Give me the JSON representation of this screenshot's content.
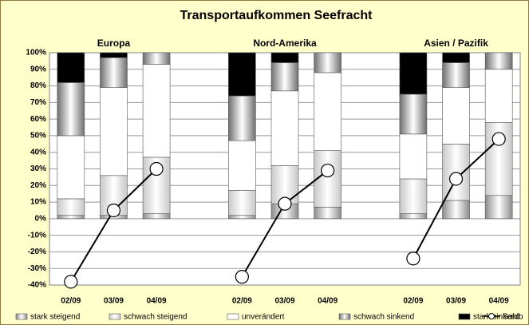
{
  "chart_data": {
    "type": "stacked-bar-line",
    "title": "Transportaufkommen Seefracht",
    "group_labels": [
      "Europa",
      "Nord-Amerika",
      "Asien / Pazifik"
    ],
    "categories": [
      "02/09",
      "03/09",
      "04/09",
      null,
      "02/09",
      "03/09",
      "04/09",
      null,
      "02/09",
      "03/09",
      "04/09"
    ],
    "series": [
      {
        "name": "stark steigend",
        "color": "#8c8c8c",
        "values": [
          2,
          2,
          3,
          null,
          2,
          9,
          7,
          null,
          3,
          11,
          14
        ]
      },
      {
        "name": "schwach steigend",
        "color": "#c8c8c8",
        "values": [
          10,
          24,
          34,
          null,
          15,
          23,
          34,
          null,
          21,
          34,
          44
        ]
      },
      {
        "name": "unverändert",
        "color": "#ffffff",
        "values": [
          38,
          53,
          56,
          null,
          30,
          45,
          47,
          null,
          27,
          34,
          32
        ]
      },
      {
        "name": "schwach sinkend",
        "color": "#6e6e6e",
        "values": [
          32,
          18,
          7,
          null,
          27,
          17,
          12,
          null,
          24,
          15,
          10
        ]
      },
      {
        "name": "stark sinkend",
        "color": "#000000",
        "values": [
          18,
          3,
          0,
          null,
          26,
          6,
          0,
          null,
          25,
          6,
          0
        ]
      }
    ],
    "line_series": {
      "name": "Saldo",
      "color": "#000000",
      "values": [
        -38,
        5,
        30,
        null,
        -35,
        9,
        29,
        null,
        -24,
        24,
        48
      ]
    },
    "ylim": [
      -40,
      100
    ],
    "yticks": [
      {
        "value": -40,
        "label": "-40%"
      },
      {
        "value": -30,
        "label": "-30%"
      },
      {
        "value": -20,
        "label": "-20%"
      },
      {
        "value": -10,
        "label": "-10%"
      },
      {
        "value": 0,
        "label": "0%"
      },
      {
        "value": 10,
        "label": "10%"
      },
      {
        "value": 20,
        "label": "20%"
      },
      {
        "value": 30,
        "label": "30%"
      },
      {
        "value": 40,
        "label": "40%"
      },
      {
        "value": 50,
        "label": "50%"
      },
      {
        "value": 60,
        "label": "60%"
      },
      {
        "value": 70,
        "label": "70%"
      },
      {
        "value": 80,
        "label": "80%"
      },
      {
        "value": 90,
        "label": "90%"
      },
      {
        "value": 100,
        "label": "100%"
      }
    ],
    "grid": true
  }
}
